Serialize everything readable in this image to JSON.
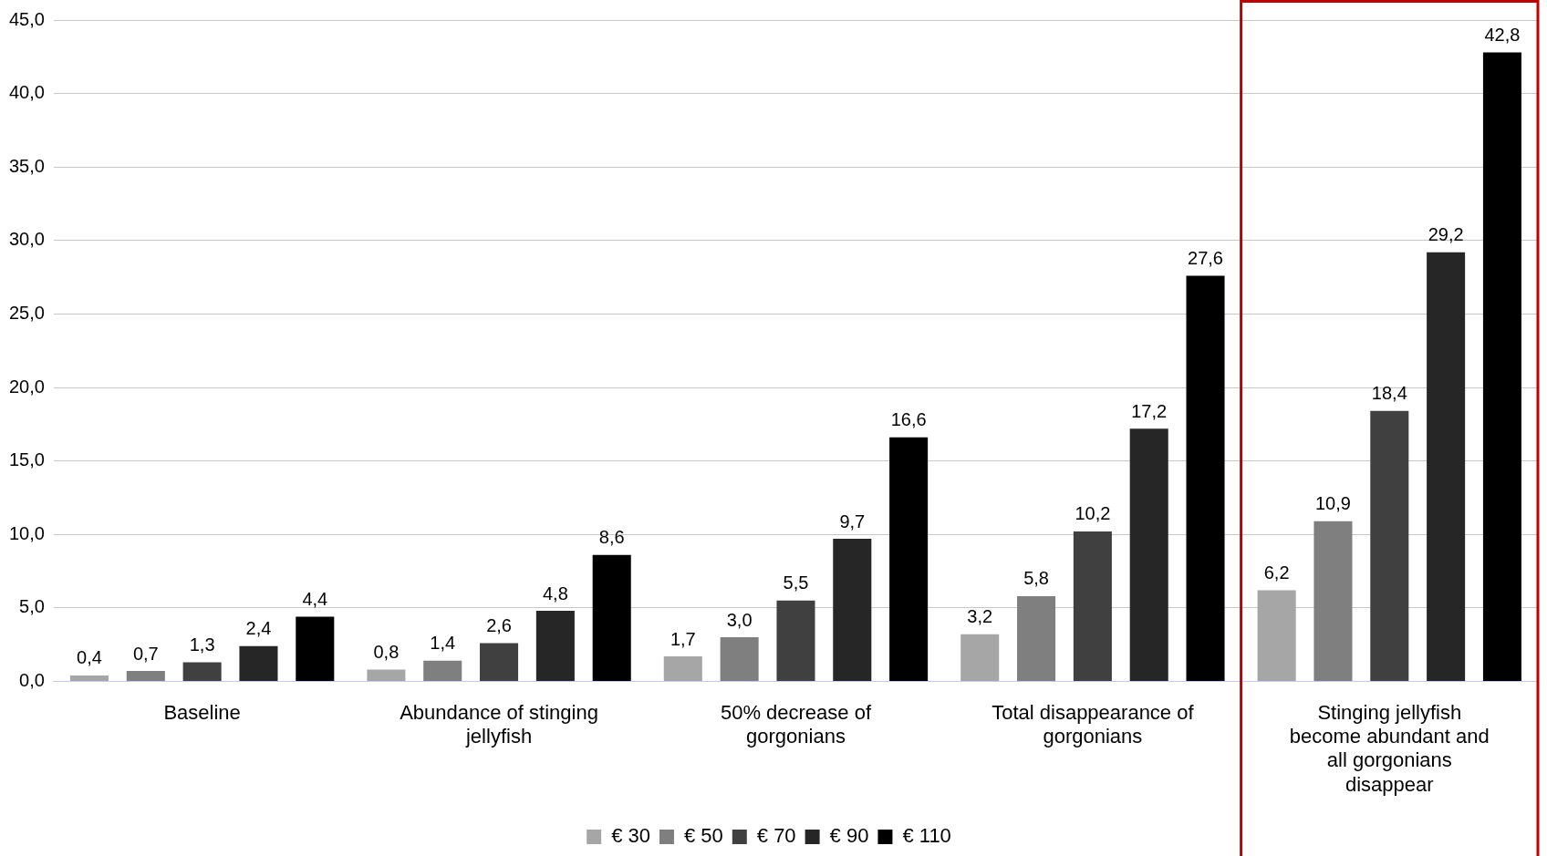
{
  "chart_data": {
    "type": "bar",
    "categories": [
      "Baseline",
      "Abundance of stinging jellyfish",
      "50% decrease of gorgonians",
      "Total disappearance of gorgonians",
      "Stinging jellyfish become abundant and all gorgonians disappear"
    ],
    "series": [
      {
        "name": "€ 30",
        "color": "#a6a6a6",
        "values": [
          0.4,
          0.8,
          1.7,
          3.2,
          6.2
        ],
        "value_labels": [
          "0,4",
          "0,8",
          "1,7",
          "3,2",
          "6,2"
        ]
      },
      {
        "name": "€ 50",
        "color": "#7f7f7f",
        "values": [
          0.7,
          1.4,
          3.0,
          5.8,
          10.9
        ],
        "value_labels": [
          "0,7",
          "1,4",
          "3,0",
          "5,8",
          "10,9"
        ]
      },
      {
        "name": "€ 70",
        "color": "#404040",
        "values": [
          1.3,
          2.6,
          5.5,
          10.2,
          18.4
        ],
        "value_labels": [
          "1,3",
          "2,6",
          "5,5",
          "10,2",
          "18,4"
        ]
      },
      {
        "name": "€ 90",
        "color": "#262626",
        "values": [
          2.4,
          4.8,
          9.7,
          17.2,
          29.2
        ],
        "value_labels": [
          "2,4",
          "4,8",
          "9,7",
          "17,2",
          "29,2"
        ]
      },
      {
        "name": "€ 110",
        "color": "#000000",
        "values": [
          4.4,
          8.6,
          16.6,
          27.6,
          42.8
        ],
        "value_labels": [
          "4,4",
          "8,6",
          "16,6",
          "27,6",
          "42,8"
        ]
      }
    ],
    "ylim": [
      0,
      45
    ],
    "yticks": [
      {
        "value": 0,
        "label": "0,0"
      },
      {
        "value": 5,
        "label": "5,0"
      },
      {
        "value": 10,
        "label": "10,0"
      },
      {
        "value": 15,
        "label": "15,0"
      },
      {
        "value": 20,
        "label": "20,0"
      },
      {
        "value": 25,
        "label": "25,0"
      },
      {
        "value": 30,
        "label": "30,0"
      },
      {
        "value": 35,
        "label": "35,0"
      },
      {
        "value": 40,
        "label": "40,0"
      },
      {
        "value": 45,
        "label": "45,0"
      }
    ],
    "grid": "y",
    "legend": "bottom"
  }
}
